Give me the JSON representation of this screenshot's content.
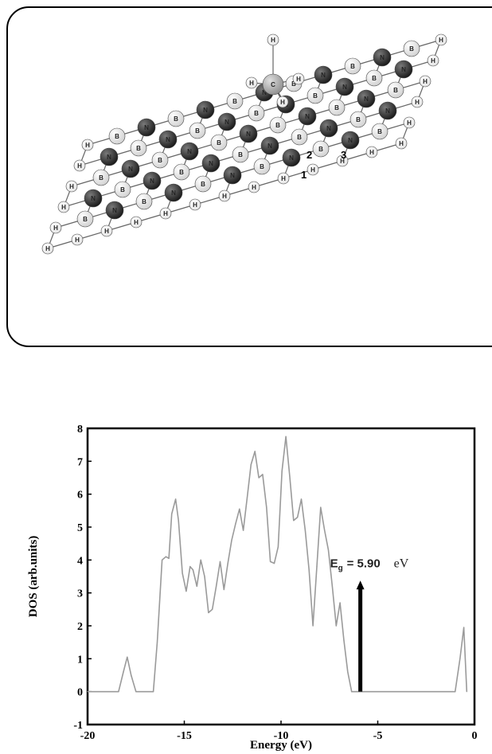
{
  "figure": {
    "site_labels": [
      "1",
      "2",
      "3"
    ],
    "atom_labels": {
      "boron": "B",
      "nitrogen": "N",
      "hydrogen": "H",
      "carbon": "C"
    },
    "colors": {
      "nitrogen": "#141414",
      "boron": "#cfcfcf",
      "hydrogen": "#e4e4e4",
      "carbon": "#8a8a8a"
    }
  },
  "chart_data": {
    "type": "line",
    "xlabel": "Energy (eV)",
    "ylabel": "DOS (arb.units)",
    "xlim": [
      -20,
      0
    ],
    "ylim": [
      -1,
      8
    ],
    "x_ticks": [
      "-20",
      "-15",
      "-10",
      "-5",
      "0"
    ],
    "y_ticks": [
      "-1",
      "0",
      "1",
      "2",
      "3",
      "4",
      "5",
      "6",
      "7",
      "8"
    ],
    "grid": false,
    "line_color": "#9a9a9a",
    "series": [
      {
        "x": [
          -20,
          -18.4,
          -18.15,
          -17.95,
          -17.75,
          -17.5,
          -16.6,
          -16.4,
          -16.15,
          -15.95,
          -15.8,
          -15.65,
          -15.45,
          -15.3,
          -15.1,
          -14.9,
          -14.7,
          -14.55,
          -14.35,
          -14.15,
          -13.95,
          -13.75,
          -13.55,
          -13.35,
          -13.15,
          -12.95,
          -12.75,
          -12.55,
          -12.35,
          -12.15,
          -11.95,
          -11.75,
          -11.55,
          -11.35,
          -11.15,
          -10.95,
          -10.75,
          -10.55,
          -10.35,
          -10.15,
          -9.95,
          -9.75,
          -9.55,
          -9.35,
          -9.15,
          -8.95,
          -8.75,
          -8.55,
          -8.35,
          -8.15,
          -7.95,
          -7.75,
          -7.55,
          -7.35,
          -7.15,
          -6.95,
          -6.75,
          -6.55,
          -6.35,
          -6.15,
          -5.9,
          -1.0,
          -0.75,
          -0.55,
          -0.4
        ],
        "y": [
          0,
          0,
          0.6,
          1.05,
          0.5,
          0,
          0,
          1.5,
          4.0,
          4.1,
          4.05,
          5.4,
          5.85,
          5.2,
          3.6,
          3.05,
          3.8,
          3.7,
          3.2,
          4.0,
          3.5,
          2.4,
          2.5,
          3.2,
          3.95,
          3.1,
          3.9,
          4.6,
          5.1,
          5.55,
          4.9,
          5.9,
          6.9,
          7.3,
          6.5,
          6.6,
          5.6,
          3.95,
          3.9,
          4.4,
          6.7,
          7.75,
          6.55,
          5.2,
          5.3,
          5.85,
          4.9,
          3.7,
          2.0,
          3.8,
          5.6,
          4.9,
          4.3,
          3.2,
          2.0,
          2.7,
          1.55,
          0.6,
          0,
          0,
          0,
          0,
          1.0,
          1.95,
          0
        ]
      }
    ],
    "annotations": [
      {
        "text": "E",
        "subscript": "g",
        "value_text": "= 5.90",
        "unit": "eV",
        "arrow_x": -5.9,
        "arrow_y_from": 0,
        "arrow_y_to": 3.3
      }
    ]
  }
}
